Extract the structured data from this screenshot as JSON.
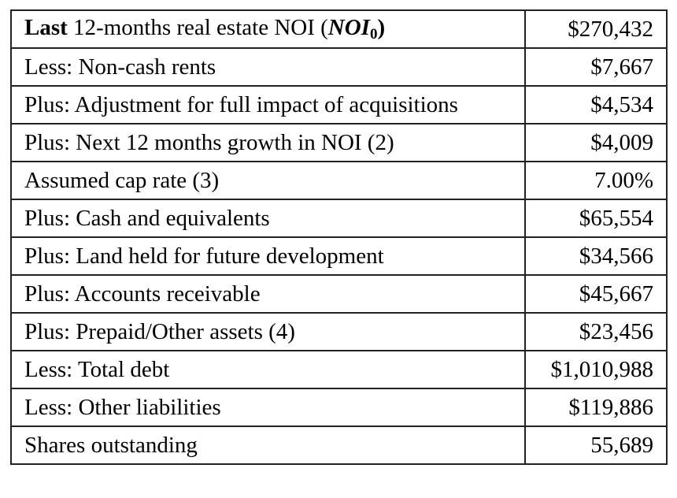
{
  "table": {
    "header_row": {
      "label_bold": "Last",
      "label_text": " 12-months real estate NOI (",
      "symbol": "NOI",
      "subscript": "0",
      "label_close": ")",
      "value": "$270,432"
    },
    "rows": [
      {
        "label": "Less: Non-cash rents",
        "value": "$7,667"
      },
      {
        "label": "Plus: Adjustment for full impact of acquisitions",
        "value": "$4,534"
      },
      {
        "label": "Plus: Next 12 months growth in NOI (2)",
        "value": "$4,009"
      },
      {
        "label": "Assumed cap rate (3)",
        "value": "7.00%"
      },
      {
        "label": "Plus: Cash and equivalents",
        "value": "$65,554"
      },
      {
        "label": "Plus: Land held for future development",
        "value": "$34,566"
      },
      {
        "label": "Plus: Accounts receivable",
        "value": "$45,667"
      },
      {
        "label": "Plus: Prepaid/Other assets (4)",
        "value": "$23,456"
      },
      {
        "label": "Less: Total debt",
        "value": "$1,010,988"
      },
      {
        "label": "Less: Other liabilities",
        "value": "$119,886"
      },
      {
        "label": "Shares outstanding",
        "value": "55,689"
      }
    ]
  }
}
